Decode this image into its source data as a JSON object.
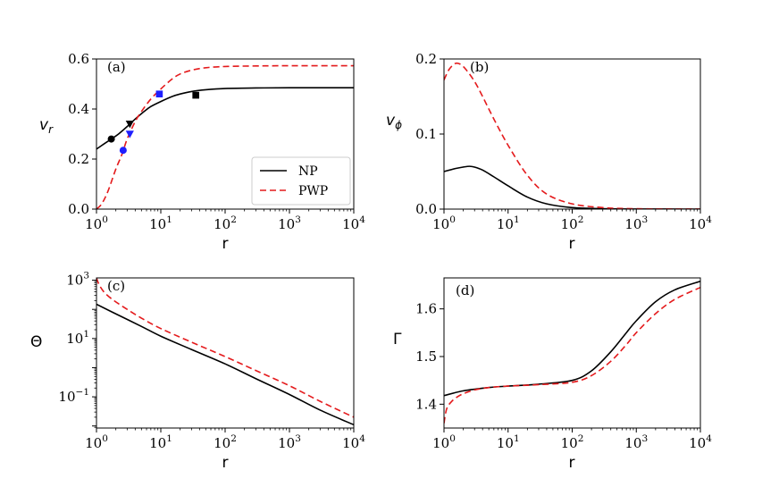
{
  "figure": {
    "legend": {
      "placement": "lower-right",
      "entries": [
        {
          "label": "NP",
          "color": "#000000",
          "style": "solid"
        },
        {
          "label": "PWP",
          "color": "#e41a1c",
          "style": "dashed"
        }
      ]
    }
  },
  "chart_data": [
    {
      "type": "line",
      "panel_label": "(a)",
      "xlabel": "r",
      "ylabel": "v",
      "ylabel_sub": "r",
      "xscale": "log",
      "yscale": "linear",
      "xlim": [
        1,
        10000
      ],
      "ylim": [
        0,
        0.6
      ],
      "x_ticks": [
        {
          "base": "10",
          "exp": "0",
          "value": 1
        },
        {
          "base": "10",
          "exp": "1",
          "value": 10
        },
        {
          "base": "10",
          "exp": "2",
          "value": 100
        },
        {
          "base": "10",
          "exp": "3",
          "value": 1000
        },
        {
          "base": "10",
          "exp": "4",
          "value": 10000
        }
      ],
      "y_ticks": [
        {
          "label": "0.0",
          "value": 0
        },
        {
          "label": "0.2",
          "value": 0.2
        },
        {
          "label": "0.4",
          "value": 0.4
        },
        {
          "label": "0.6",
          "value": 0.6
        }
      ],
      "series": [
        {
          "name": "NP",
          "color": "#000000",
          "dash": "solid",
          "x": [
            1,
            1.3,
            1.7,
            2.2,
            3,
            4,
            5.5,
            7,
            10,
            15,
            20,
            30,
            50,
            100,
            300,
            1000,
            10000
          ],
          "y": [
            0.24,
            0.26,
            0.28,
            0.3,
            0.33,
            0.36,
            0.39,
            0.41,
            0.43,
            0.45,
            0.46,
            0.47,
            0.477,
            0.482,
            0.484,
            0.485,
            0.485
          ]
        },
        {
          "name": "PWP",
          "color": "#e41a1c",
          "dash": "dashed",
          "x": [
            1,
            1.2,
            1.5,
            2,
            2.5,
            3,
            4,
            5,
            7,
            10,
            15,
            20,
            30,
            50,
            100,
            300,
            1000,
            10000
          ],
          "y": [
            0,
            0.02,
            0.07,
            0.16,
            0.22,
            0.28,
            0.35,
            0.39,
            0.44,
            0.48,
            0.52,
            0.54,
            0.555,
            0.565,
            0.57,
            0.572,
            0.573,
            0.573
          ]
        }
      ],
      "markers": [
        {
          "shape": "circle",
          "color": "#000000",
          "x": 1.7,
          "y": 0.28
        },
        {
          "shape": "triangle-down",
          "color": "#000000",
          "x": 3.3,
          "y": 0.34
        },
        {
          "shape": "square",
          "color": "#000000",
          "x": 35,
          "y": 0.455
        },
        {
          "shape": "circle",
          "color": "#1f1fff",
          "x": 2.6,
          "y": 0.235
        },
        {
          "shape": "triangle-down",
          "color": "#1f1fff",
          "x": 3.3,
          "y": 0.3
        },
        {
          "shape": "square",
          "color": "#1f1fff",
          "x": 9.5,
          "y": 0.46
        }
      ]
    },
    {
      "type": "line",
      "panel_label": "(b)",
      "xlabel": "r",
      "ylabel": "v",
      "ylabel_sub": "ϕ",
      "xscale": "log",
      "yscale": "linear",
      "xlim": [
        1,
        10000
      ],
      "ylim": [
        0,
        0.2
      ],
      "x_ticks": [
        {
          "base": "10",
          "exp": "0",
          "value": 1
        },
        {
          "base": "10",
          "exp": "1",
          "value": 10
        },
        {
          "base": "10",
          "exp": "2",
          "value": 100
        },
        {
          "base": "10",
          "exp": "3",
          "value": 1000
        },
        {
          "base": "10",
          "exp": "4",
          "value": 10000
        }
      ],
      "y_ticks": [
        {
          "label": "0.0",
          "value": 0
        },
        {
          "label": "0.1",
          "value": 0.1
        },
        {
          "label": "0.2",
          "value": 0.2
        }
      ],
      "series": [
        {
          "name": "NP",
          "color": "#000000",
          "dash": "solid",
          "x": [
            1,
            1.5,
            2,
            2.5,
            3,
            4,
            6,
            10,
            20,
            40,
            100,
            300,
            1000,
            10000
          ],
          "y": [
            0.05,
            0.054,
            0.056,
            0.057,
            0.056,
            0.052,
            0.043,
            0.031,
            0.016,
            0.007,
            0.002,
            0.0005,
            0.0001,
            0
          ]
        },
        {
          "name": "PWP",
          "color": "#e41a1c",
          "dash": "dashed",
          "x": [
            1,
            1.2,
            1.5,
            1.8,
            2.2,
            3,
            4,
            6,
            10,
            20,
            40,
            100,
            300,
            1000,
            10000
          ],
          "y": [
            0.172,
            0.186,
            0.194,
            0.193,
            0.186,
            0.17,
            0.15,
            0.12,
            0.085,
            0.045,
            0.02,
            0.007,
            0.002,
            0.0005,
            0
          ]
        }
      ]
    },
    {
      "type": "line",
      "panel_label": "(c)",
      "xlabel": "r",
      "ylabel": "Θ",
      "xscale": "log",
      "yscale": "log",
      "xlim": [
        1,
        10000
      ],
      "ylim": [
        0.0085,
        1200
      ],
      "x_ticks": [
        {
          "base": "10",
          "exp": "0",
          "value": 1
        },
        {
          "base": "10",
          "exp": "1",
          "value": 10
        },
        {
          "base": "10",
          "exp": "2",
          "value": 100
        },
        {
          "base": "10",
          "exp": "3",
          "value": 1000
        },
        {
          "base": "10",
          "exp": "4",
          "value": 10000
        }
      ],
      "y_ticks": [
        {
          "base": "10",
          "exp": "−1",
          "value": 0.1
        },
        {
          "base": "10",
          "exp": "1",
          "value": 10
        },
        {
          "base": "10",
          "exp": "3",
          "value": 1000
        }
      ],
      "series": [
        {
          "name": "NP",
          "color": "#000000",
          "dash": "solid",
          "x": [
            1,
            2,
            5,
            10,
            30,
            100,
            300,
            1000,
            3000,
            10000
          ],
          "y": [
            150,
            70,
            26,
            12,
            4.2,
            1.35,
            0.42,
            0.12,
            0.035,
            0.011
          ]
        },
        {
          "name": "PWP",
          "color": "#e41a1c",
          "dash": "dashed",
          "x": [
            1,
            1.1,
            1.3,
            1.6,
            2,
            3,
            5,
            10,
            30,
            100,
            300,
            1000,
            3000,
            10000
          ],
          "y": [
            1200,
            700,
            400,
            260,
            180,
            100,
            50,
            22,
            7.5,
            2.4,
            0.8,
            0.24,
            0.07,
            0.02
          ]
        }
      ]
    },
    {
      "type": "line",
      "panel_label": "(d)",
      "xlabel": "r",
      "ylabel": "Γ",
      "xscale": "log",
      "yscale": "linear",
      "xlim": [
        1,
        10000
      ],
      "ylim": [
        1.35,
        1.665
      ],
      "x_ticks": [
        {
          "base": "10",
          "exp": "0",
          "value": 1
        },
        {
          "base": "10",
          "exp": "1",
          "value": 10
        },
        {
          "base": "10",
          "exp": "2",
          "value": 100
        },
        {
          "base": "10",
          "exp": "3",
          "value": 1000
        },
        {
          "base": "10",
          "exp": "4",
          "value": 10000
        }
      ],
      "y_ticks": [
        {
          "label": "1.4",
          "value": 1.4
        },
        {
          "label": "1.5",
          "value": 1.5
        },
        {
          "label": "1.6",
          "value": 1.6
        }
      ],
      "series": [
        {
          "name": "NP",
          "color": "#000000",
          "dash": "solid",
          "x": [
            1,
            2,
            5,
            10,
            30,
            100,
            200,
            400,
            700,
            1000,
            2000,
            4000,
            10000
          ],
          "y": [
            1.418,
            1.428,
            1.435,
            1.438,
            1.442,
            1.45,
            1.47,
            1.51,
            1.55,
            1.575,
            1.615,
            1.64,
            1.658
          ]
        },
        {
          "name": "PWP",
          "color": "#e41a1c",
          "dash": "dashed",
          "x": [
            1,
            1.1,
            1.3,
            1.6,
            2,
            3,
            5,
            10,
            30,
            100,
            200,
            400,
            700,
            1000,
            2000,
            4000,
            10000
          ],
          "y": [
            1.36,
            1.39,
            1.405,
            1.415,
            1.422,
            1.43,
            1.435,
            1.438,
            1.441,
            1.446,
            1.46,
            1.49,
            1.525,
            1.55,
            1.59,
            1.62,
            1.645
          ]
        }
      ]
    }
  ]
}
